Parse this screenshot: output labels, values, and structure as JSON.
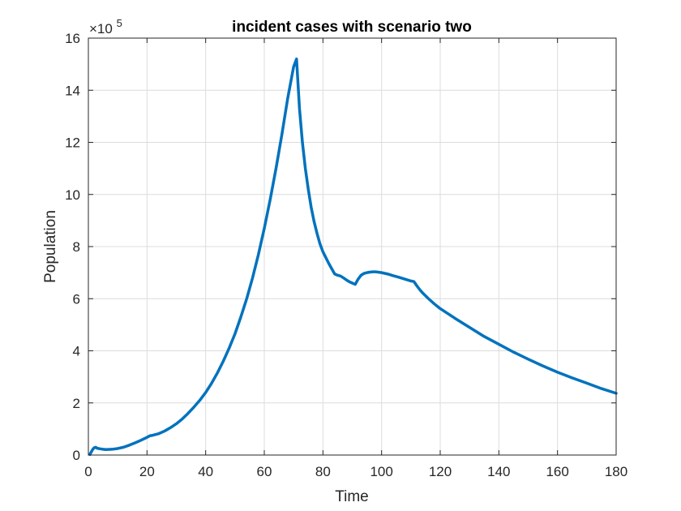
{
  "chart_data": {
    "type": "line",
    "title": "incident cases with scenario two",
    "xlabel": "Time",
    "ylabel": "Population",
    "y_multiplier_label": "×10",
    "y_multiplier_exponent": "5",
    "xlim": [
      0,
      180
    ],
    "ylim": [
      0,
      16
    ],
    "grid": true,
    "legend": "none",
    "x_ticks": [
      "0",
      "20",
      "40",
      "60",
      "80",
      "100",
      "120",
      "140",
      "160",
      "180"
    ],
    "y_ticks": [
      "0",
      "2",
      "4",
      "6",
      "8",
      "10",
      "12",
      "14",
      "16"
    ],
    "colors": {
      "line": "#0072BD",
      "axis": "#262626",
      "grid": "#dcdcdc"
    },
    "series": [
      {
        "x": [
          0.5,
          1,
          1.5,
          2,
          2.5,
          3,
          4,
          5,
          6,
          8,
          10,
          12,
          14,
          16,
          18,
          20,
          21,
          22,
          24,
          26,
          28,
          30,
          32,
          34,
          36,
          38,
          40,
          42,
          44,
          46,
          48,
          50,
          52,
          54,
          56,
          58,
          60,
          62,
          64,
          66,
          68,
          70,
          71,
          72,
          73,
          74,
          75,
          76,
          77,
          78,
          79,
          80,
          82,
          84,
          85,
          86,
          87,
          88,
          89,
          90,
          91,
          92,
          93,
          94,
          95,
          96,
          97,
          98,
          100,
          102,
          104,
          106,
          108,
          110,
          111,
          112,
          113,
          114,
          116,
          118,
          120,
          125,
          130,
          135,
          140,
          145,
          150,
          155,
          160,
          165,
          170,
          175,
          180
        ],
        "y": [
          0.02,
          0.12,
          0.22,
          0.28,
          0.3,
          0.26,
          0.24,
          0.22,
          0.21,
          0.22,
          0.25,
          0.3,
          0.38,
          0.47,
          0.57,
          0.68,
          0.74,
          0.76,
          0.82,
          0.92,
          1.05,
          1.2,
          1.38,
          1.6,
          1.84,
          2.1,
          2.4,
          2.75,
          3.15,
          3.6,
          4.1,
          4.65,
          5.3,
          6.0,
          6.8,
          7.7,
          8.7,
          9.8,
          11.0,
          12.3,
          13.7,
          14.9,
          15.2,
          13.3,
          12.0,
          11.0,
          10.2,
          9.5,
          8.95,
          8.5,
          8.1,
          7.8,
          7.35,
          6.95,
          6.9,
          6.87,
          6.8,
          6.72,
          6.65,
          6.6,
          6.55,
          6.75,
          6.9,
          6.97,
          7.0,
          7.02,
          7.03,
          7.03,
          7.0,
          6.95,
          6.88,
          6.82,
          6.75,
          6.68,
          6.66,
          6.5,
          6.35,
          6.22,
          6.0,
          5.8,
          5.62,
          5.25,
          4.9,
          4.55,
          4.25,
          3.95,
          3.68,
          3.42,
          3.18,
          2.96,
          2.76,
          2.55,
          2.37
        ]
      }
    ]
  }
}
